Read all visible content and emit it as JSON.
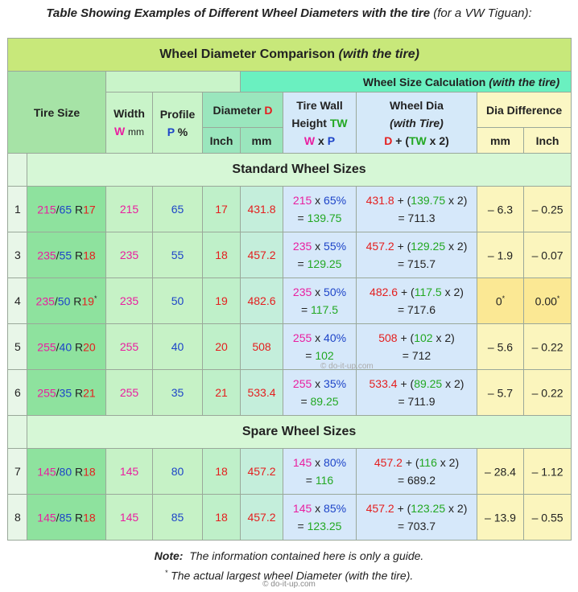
{
  "heading": {
    "main": "Table Showing Examples of Different Wheel Diameters with the tire",
    "sub": "(for a VW Tiguan):"
  },
  "header": {
    "title": "Wheel Diameter Comparison",
    "title_sub": "(with the tire)",
    "calc_title": "Wheel Size Calculation",
    "calc_sub": "(with the tire)",
    "tire_size": "Tire Size",
    "width": "Width",
    "width_sym": "W",
    "width_unit": "mm",
    "profile": "Profile",
    "profile_sym": "P",
    "profile_unit": "%",
    "diameter": "Diameter",
    "diameter_sym": "D",
    "inch": "Inch",
    "mm": "mm",
    "tire_wall_1": "Tire Wall",
    "tire_wall_2": "Height",
    "tw_sym": "TW",
    "wxp_w": "W",
    "wxp_x": "x",
    "wxp_p": "P",
    "wheel_dia": "Wheel Dia",
    "wheel_dia_sub": "(with Tire)",
    "f_d": "D",
    "f_plus": "+ (",
    "f_tw": "TW",
    "f_x2": "x 2)",
    "dia_diff": "Dia Difference",
    "diff_mm": "mm",
    "diff_inch": "Inch"
  },
  "sections": {
    "standard": "Standard Wheel Sizes",
    "spare": "Spare Wheel Sizes"
  },
  "rows": [
    {
      "n": "1",
      "w": "215",
      "p": "65",
      "r": "R",
      "d": "17",
      "mm": "431.8",
      "pp": "65%",
      "tw": "139.75",
      "total": "711.3",
      "mdiff": "– 6.3",
      "idiff": "– 0.25",
      "star": ""
    },
    {
      "n": "3",
      "w": "235",
      "p": "55",
      "r": "R",
      "d": "18",
      "mm": "457.2",
      "pp": "55%",
      "tw": "129.25",
      "total": "715.7",
      "mdiff": "– 1.9",
      "idiff": "– 0.07",
      "star": ""
    },
    {
      "n": "4",
      "w": "235",
      "p": "50",
      "r": "R",
      "d": "19",
      "mm": "482.6",
      "pp": "50%",
      "tw": "117.5",
      "total": "717.6",
      "mdiff": "0",
      "idiff": "0.00",
      "star": "*"
    },
    {
      "n": "5",
      "w": "255",
      "p": "40",
      "r": "R",
      "d": "20",
      "mm": "508",
      "pp": "40%",
      "tw": "102",
      "total": "712",
      "mdiff": "– 5.6",
      "idiff": "– 0.22",
      "star": ""
    },
    {
      "n": "6",
      "w": "255",
      "p": "35",
      "r": "R",
      "d": "21",
      "mm": "533.4",
      "pp": "35%",
      "tw": "89.25",
      "total": "711.9",
      "mdiff": "– 5.7",
      "idiff": "– 0.22",
      "star": ""
    }
  ],
  "spare_rows": [
    {
      "n": "7",
      "w": "145",
      "p": "80",
      "r": "R",
      "d": "18",
      "mm": "457.2",
      "pp": "80%",
      "tw": "116",
      "total": "689.2",
      "mdiff": "– 28.4",
      "idiff": "– 1.12",
      "star": ""
    },
    {
      "n": "8",
      "w": "145",
      "p": "85",
      "r": "R",
      "d": "18",
      "mm": "457.2",
      "pp": "85%",
      "tw": "123.25",
      "total": "703.7",
      "mdiff": "– 13.9",
      "idiff": "– 0.55",
      "star": ""
    }
  ],
  "calc": {
    "x": "x",
    "eq": "=",
    "plus_open": "+ (",
    "x2_close": "x 2)",
    "slash": "/"
  },
  "note": {
    "label": "Note:",
    "text": "The information contained here is only a guide.",
    "star": "*",
    "text2": "The actual largest wheel Diameter (with the tire)."
  },
  "watermark": "© do-it-up.com",
  "copyright": "© do-it-up.com",
  "colors": {
    "title_bg": "#c8e87a",
    "calc_head_bg": "#6af0c0",
    "pink": "#e91ea0",
    "blue": "#1d44c8",
    "red": "#e41e1e",
    "green": "#22a822"
  }
}
